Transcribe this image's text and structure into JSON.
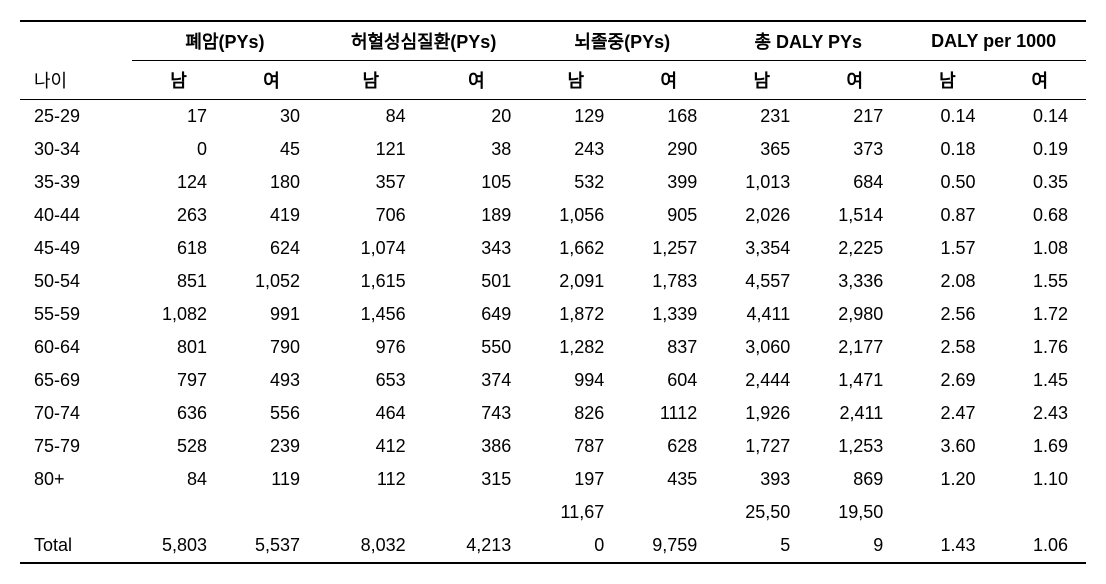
{
  "headers": {
    "age": "나이",
    "groups": [
      {
        "label": "폐암(PYs)",
        "m": "남",
        "f": "여"
      },
      {
        "label": "허혈성심질환(PYs)",
        "m": "남",
        "f": "여"
      },
      {
        "label": "뇌졸중(PYs)",
        "m": "남",
        "f": "여"
      },
      {
        "label": "총 DALY PYs",
        "m": "남",
        "f": "여"
      },
      {
        "label": "DALY per 1000",
        "m": "남",
        "f": "여"
      }
    ]
  },
  "rows": [
    {
      "age": "25-29",
      "v": [
        "17",
        "30",
        "84",
        "20",
        "129",
        "168",
        "231",
        "217",
        "0.14",
        "0.14"
      ]
    },
    {
      "age": "30-34",
      "v": [
        "0",
        "45",
        "121",
        "38",
        "243",
        "290",
        "365",
        "373",
        "0.18",
        "0.19"
      ]
    },
    {
      "age": "35-39",
      "v": [
        "124",
        "180",
        "357",
        "105",
        "532",
        "399",
        "1,013",
        "684",
        "0.50",
        "0.35"
      ]
    },
    {
      "age": "40-44",
      "v": [
        "263",
        "419",
        "706",
        "189",
        "1,056",
        "905",
        "2,026",
        "1,514",
        "0.87",
        "0.68"
      ]
    },
    {
      "age": "45-49",
      "v": [
        "618",
        "624",
        "1,074",
        "343",
        "1,662",
        "1,257",
        "3,354",
        "2,225",
        "1.57",
        "1.08"
      ]
    },
    {
      "age": "50-54",
      "v": [
        "851",
        "1,052",
        "1,615",
        "501",
        "2,091",
        "1,783",
        "4,557",
        "3,336",
        "2.08",
        "1.55"
      ]
    },
    {
      "age": "55-59",
      "v": [
        "1,082",
        "991",
        "1,456",
        "649",
        "1,872",
        "1,339",
        "4,411",
        "2,980",
        "2.56",
        "1.72"
      ]
    },
    {
      "age": "60-64",
      "v": [
        "801",
        "790",
        "976",
        "550",
        "1,282",
        "837",
        "3,060",
        "2,177",
        "2.58",
        "1.76"
      ]
    },
    {
      "age": "65-69",
      "v": [
        "797",
        "493",
        "653",
        "374",
        "994",
        "604",
        "2,444",
        "1,471",
        "2.69",
        "1.45"
      ]
    },
    {
      "age": "70-74",
      "v": [
        "636",
        "556",
        "464",
        "743",
        "826",
        "1112",
        "1,926",
        "2,411",
        "2.47",
        "2.43"
      ]
    },
    {
      "age": "75-79",
      "v": [
        "528",
        "239",
        "412",
        "386",
        "787",
        "628",
        "1,727",
        "1,253",
        "3.60",
        "1.69"
      ]
    },
    {
      "age": "80+",
      "v": [
        "84",
        "119",
        "112",
        "315",
        "197",
        "435",
        "393",
        "869",
        "1.20",
        "1.10"
      ]
    }
  ],
  "total_split_top": {
    "age": "",
    "v": [
      "",
      "",
      "",
      "",
      "11,67",
      "",
      "25,50",
      "19,50",
      "",
      ""
    ]
  },
  "total_split_bottom": {
    "age": "Total",
    "v": [
      "5,803",
      "5,537",
      "8,032",
      "4,213",
      "0",
      "9,759",
      "5",
      "9",
      "1.43",
      "1.06"
    ]
  }
}
